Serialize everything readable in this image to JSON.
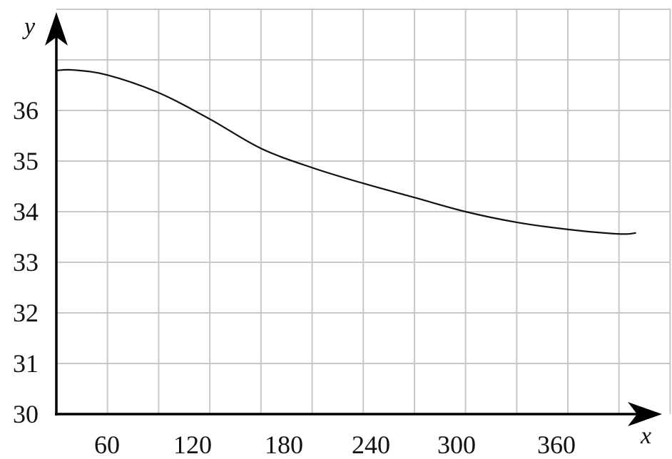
{
  "chart_data": {
    "type": "line",
    "title": "",
    "xlabel": "x",
    "ylabel": "y",
    "xlim": [
      30,
      390
    ],
    "ylim": [
      30,
      38
    ],
    "grid": true,
    "x_grid_step": 30,
    "y_grid_step": 1,
    "x_ticks": [
      "60",
      "120",
      "180",
      "240",
      "300",
      "360"
    ],
    "y_ticks": [
      "30",
      "31",
      "32",
      "33",
      "34",
      "35",
      "36"
    ],
    "series": [
      {
        "color": "#111111",
        "x": [
          30,
          40,
          60,
          90,
          120,
          150,
          180,
          210,
          240,
          270,
          300,
          330,
          360,
          370
        ],
        "y": [
          36.79,
          36.8,
          36.7,
          36.35,
          35.83,
          35.25,
          34.87,
          34.56,
          34.28,
          34.0,
          33.79,
          33.65,
          33.56,
          33.58
        ]
      }
    ]
  }
}
